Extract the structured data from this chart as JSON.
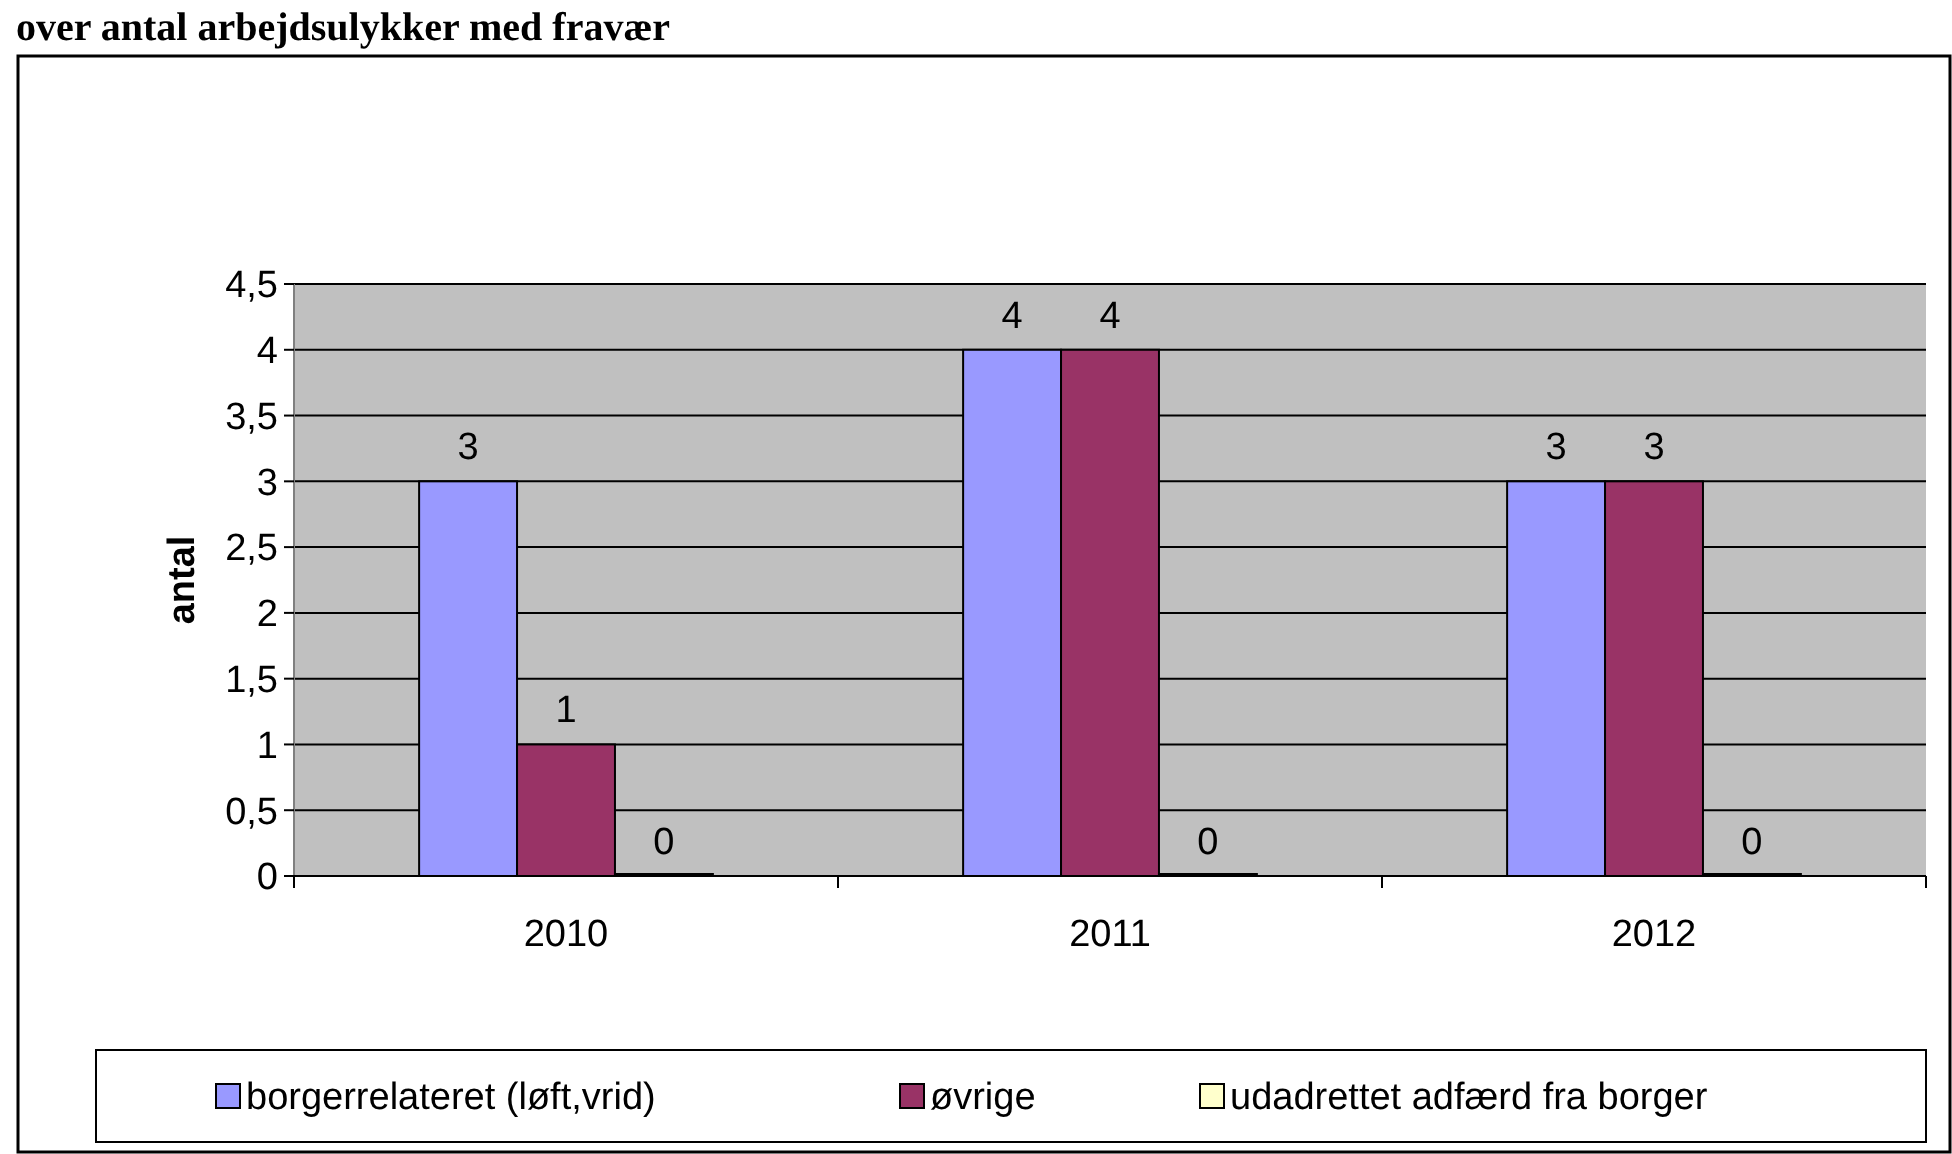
{
  "chart_data": {
    "type": "bar",
    "title": "over antal arbejdsulykker med fravær",
    "ylabel": "antal",
    "categories": [
      "2010",
      "2011",
      "2012"
    ],
    "series": [
      {
        "name": "borgerrelateret (løft,vrid)",
        "color": "#9999ff",
        "values": [
          3,
          4,
          3
        ]
      },
      {
        "name": "øvrige",
        "color": "#993366",
        "values": [
          1,
          4,
          3
        ]
      },
      {
        "name": "udadrettet adfærd fra borger",
        "color": "#ffffcc",
        "values": [
          0,
          0,
          0
        ]
      }
    ],
    "ylim": [
      0,
      4.5
    ],
    "yticks": [
      {
        "value": 0,
        "label": "0"
      },
      {
        "value": 0.5,
        "label": "0,5"
      },
      {
        "value": 1,
        "label": "1"
      },
      {
        "value": 1.5,
        "label": "1,5"
      },
      {
        "value": 2,
        "label": "2"
      },
      {
        "value": 2.5,
        "label": "2,5"
      },
      {
        "value": 3,
        "label": "3"
      },
      {
        "value": 3.5,
        "label": "3,5"
      },
      {
        "value": 4,
        "label": "4"
      },
      {
        "value": 4.5,
        "label": "4,5"
      }
    ],
    "grid": "y",
    "legend": "bottom",
    "data_labels": true
  }
}
